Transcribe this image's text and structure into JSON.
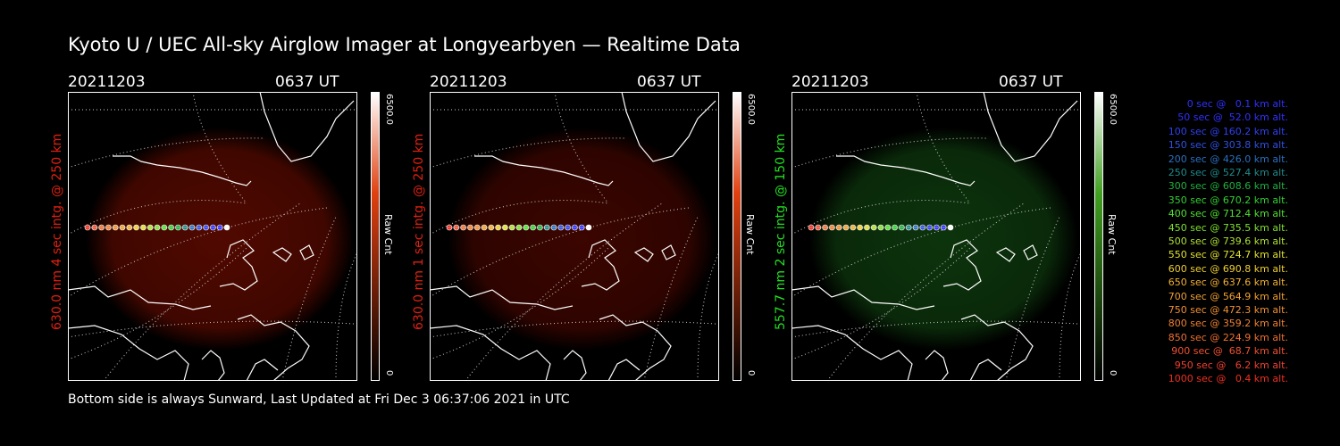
{
  "header": {
    "title": "Kyoto U / UEC All-sky Airglow Imager at Longyearbyen — Realtime Data"
  },
  "panels": [
    {
      "date": "20211203",
      "time": "0637 UT",
      "side_label": "630.0 nm 4 sec intg. @ 250 km",
      "side_color": "#e02010",
      "cb_max": "6500.0",
      "cb_min": "0",
      "cb_unit": "Raw Cnt",
      "glow_color": "#5a0a00",
      "cb_top": "#ffffff",
      "cb_mid": "#e04010",
      "cb_bottom": "#000000"
    },
    {
      "date": "20211203",
      "time": "0637 UT",
      "side_label": "630.0 nm 1 sec intg. @ 250 km",
      "side_color": "#e02010",
      "cb_max": "6500.0",
      "cb_min": "0",
      "cb_unit": "Raw Cnt",
      "glow_color": "#420600",
      "cb_top": "#ffffff",
      "cb_mid": "#e04010",
      "cb_bottom": "#000000"
    },
    {
      "date": "20211203",
      "time": "0637 UT",
      "side_label": "557.7 nm 2 sec intg. @ 150 km",
      "side_color": "#20e020",
      "cb_max": "6500.0",
      "cb_min": "0",
      "cb_unit": "Raw Cnt",
      "glow_color": "#0e3a0e",
      "cb_top": "#ffffff",
      "cb_mid": "#40a020",
      "cb_bottom": "#000000"
    }
  ],
  "legend": [
    {
      "text": "0 sec @   0.1 km alt.",
      "color": "#3030ff"
    },
    {
      "text": "50 sec @  52.0 km alt.",
      "color": "#3030ff"
    },
    {
      "text": "100 sec @ 160.2 km alt.",
      "color": "#3040f0"
    },
    {
      "text": "150 sec @ 303.8 km alt.",
      "color": "#3050e0"
    },
    {
      "text": "200 sec @ 426.0 km alt.",
      "color": "#2a70c0"
    },
    {
      "text": "250 sec @ 527.4 km alt.",
      "color": "#208a8a"
    },
    {
      "text": "300 sec @ 608.6 km alt.",
      "color": "#20b040"
    },
    {
      "text": "350 sec @ 670.2 km alt.",
      "color": "#30d030"
    },
    {
      "text": "400 sec @ 712.4 km alt.",
      "color": "#50e030"
    },
    {
      "text": "450 sec @ 735.5 km alt.",
      "color": "#80e030"
    },
    {
      "text": "500 sec @ 739.6 km alt.",
      "color": "#b0e030"
    },
    {
      "text": "550 sec @ 724.7 km alt.",
      "color": "#e0e030"
    },
    {
      "text": "600 sec @ 690.8 km alt.",
      "color": "#f0d030"
    },
    {
      "text": "650 sec @ 637.6 km alt.",
      "color": "#f0b030"
    },
    {
      "text": "700 sec @ 564.9 km alt.",
      "color": "#f0a030"
    },
    {
      "text": "750 sec @ 472.3 km alt.",
      "color": "#f09030"
    },
    {
      "text": "800 sec @ 359.2 km alt.",
      "color": "#f08030"
    },
    {
      "text": "850 sec @ 224.9 km alt.",
      "color": "#f07030"
    },
    {
      "text": "900 sec @  68.7 km alt.",
      "color": "#f05030"
    },
    {
      "text": "950 sec @   6.2 km alt.",
      "color": "#f04030"
    },
    {
      "text": "1000 sec @   0.4 km alt.",
      "color": "#f03020"
    }
  ],
  "trajectory_colors": [
    "#f03020",
    "#f05030",
    "#f07030",
    "#f08030",
    "#f09030",
    "#f0a030",
    "#f0b030",
    "#f0d030",
    "#e0e030",
    "#b0e030",
    "#80e030",
    "#50e030",
    "#30d030",
    "#20b040",
    "#208a8a",
    "#2a70c0",
    "#3050e0",
    "#3040f0",
    "#3030ff",
    "#3030ff",
    "#ffffff"
  ],
  "footer": {
    "text": "Bottom side is always Sunward, Last Updated at Fri Dec  3 06:37:06 2021 in UTC"
  }
}
